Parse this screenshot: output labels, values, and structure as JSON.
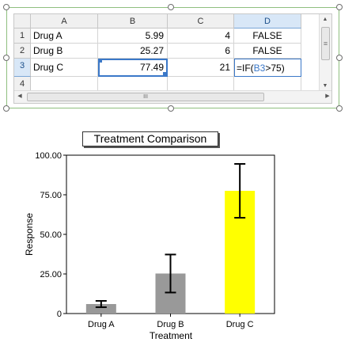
{
  "spreadsheet": {
    "columns": [
      "A",
      "B",
      "C",
      "D"
    ],
    "rows": [
      {
        "num": "1",
        "a": "Drug A",
        "b": "5.99",
        "c": "4",
        "d": "FALSE"
      },
      {
        "num": "2",
        "a": "Drug B",
        "b": "25.27",
        "c": "6",
        "d": "FALSE"
      },
      {
        "num": "3",
        "a": "Drug C",
        "b": "77.49",
        "c": "21",
        "d_prefix": "=IF(",
        "d_ref": "B3",
        "d_suffix": ">75)"
      },
      {
        "num": "4",
        "a": "",
        "b": "",
        "c": "",
        "d": ""
      }
    ],
    "selected_cell": "B3",
    "editing_cell": "D3",
    "hscroll_glyph": "III",
    "scroll_up_glyph": "▲",
    "scroll_down_glyph": "▼",
    "scroll_left_glyph": "◀",
    "scroll_right_glyph": "▶",
    "vscroll_glyph": "≡"
  },
  "chart_data": {
    "type": "bar",
    "title": "Treatment Comparison",
    "xlabel": "Treatment",
    "ylabel": "Response",
    "categories": [
      "Drug A",
      "Drug B",
      "Drug C"
    ],
    "values": [
      5.99,
      25.27,
      77.49
    ],
    "errors": [
      2,
      12,
      17
    ],
    "bar_colors": [
      "#999999",
      "#999999",
      "#ffff00"
    ],
    "ylim": [
      0,
      100
    ],
    "yticks": [
      "0",
      "25.00",
      "50.00",
      "75.00",
      "100.00"
    ],
    "grid": false,
    "legend": "none"
  }
}
